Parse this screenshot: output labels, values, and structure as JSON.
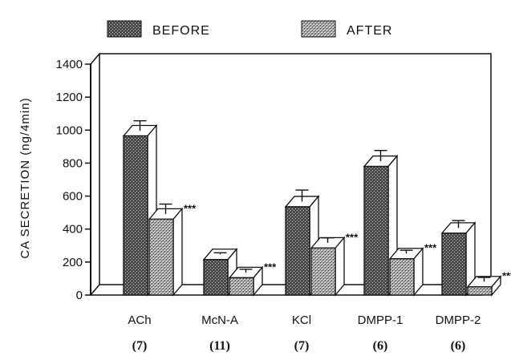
{
  "chart_data": {
    "type": "bar",
    "ylabel": "CA SECRETION (ng/4min)",
    "xlabel": "",
    "ylim": [
      0,
      1400
    ],
    "yticks": [
      0,
      200,
      400,
      600,
      800,
      1000,
      1200,
      1400
    ],
    "grid": false,
    "legend_position": "top",
    "categories": [
      "ACh",
      "McN-A",
      "KCl",
      "DMPP-1",
      "DMPP-2"
    ],
    "sample_sizes": [
      "(7)",
      "(11)",
      "(7)",
      "(6)",
      "(6)"
    ],
    "series": [
      {
        "name": "BEFORE",
        "values": [
          965,
          215,
          535,
          780,
          375
        ],
        "errors": [
          60,
          10,
          70,
          65,
          45
        ],
        "significance": [
          "",
          "",
          "",
          "",
          ""
        ]
      },
      {
        "name": "AFTER",
        "values": [
          460,
          105,
          285,
          220,
          50
        ],
        "errors": [
          60,
          20,
          30,
          20,
          25
        ],
        "significance": [
          "***",
          "***",
          "***",
          "***",
          "***"
        ]
      }
    ]
  }
}
